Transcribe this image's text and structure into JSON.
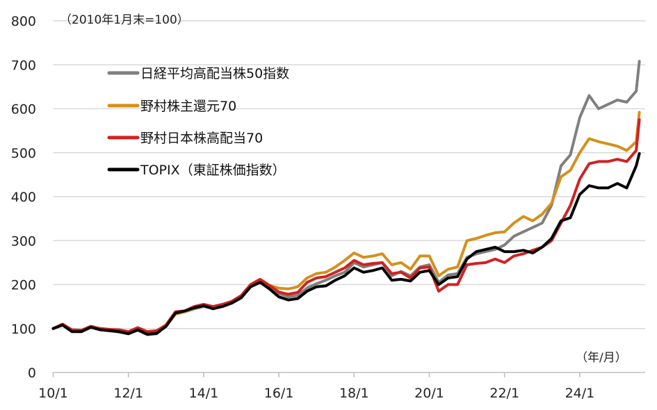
{
  "chart_data": {
    "type": "line",
    "title": "",
    "annotation_base": "（2010年1月末=100）",
    "xlabel": "（年/月）",
    "ylabel": "",
    "ylim": [
      0,
      800
    ],
    "yticks": [
      0,
      100,
      200,
      300,
      400,
      500,
      600,
      700,
      800
    ],
    "xticks": [
      {
        "date": "2010-01",
        "label": "10/1"
      },
      {
        "date": "2012-01",
        "label": "12/1"
      },
      {
        "date": "2014-01",
        "label": "14/1"
      },
      {
        "date": "2016-01",
        "label": "16/1"
      },
      {
        "date": "2018-01",
        "label": "18/1"
      },
      {
        "date": "2020-01",
        "label": "20/1"
      },
      {
        "date": "2022-01",
        "label": "22/1"
      },
      {
        "date": "2024-01",
        "label": "24/1"
      }
    ],
    "xlim": [
      "2010-01",
      "2025-10"
    ],
    "grid": "horizontal",
    "legend_placement": "top-left",
    "x": [
      "2010-01",
      "2010-04",
      "2010-07",
      "2010-10",
      "2011-01",
      "2011-04",
      "2011-07",
      "2011-10",
      "2012-01",
      "2012-04",
      "2012-07",
      "2012-10",
      "2013-01",
      "2013-04",
      "2013-07",
      "2013-10",
      "2014-01",
      "2014-04",
      "2014-07",
      "2014-10",
      "2015-01",
      "2015-04",
      "2015-07",
      "2015-10",
      "2016-01",
      "2016-04",
      "2016-07",
      "2016-10",
      "2017-01",
      "2017-04",
      "2017-07",
      "2017-10",
      "2018-01",
      "2018-04",
      "2018-07",
      "2018-10",
      "2019-01",
      "2019-04",
      "2019-07",
      "2019-10",
      "2020-01",
      "2020-04",
      "2020-07",
      "2020-10",
      "2021-01",
      "2021-04",
      "2021-07",
      "2021-10",
      "2022-01",
      "2022-04",
      "2022-07",
      "2022-10",
      "2023-01",
      "2023-04",
      "2023-07",
      "2023-10",
      "2024-01",
      "2024-04",
      "2024-07",
      "2024-10",
      "2025-01",
      "2025-04",
      "2025-07",
      "2025-08"
    ],
    "series": [
      {
        "name": "日経平均高配当株50指数",
        "color": "#7f7f7f",
        "values": [
          100,
          108,
          94,
          93,
          103,
          98,
          95,
          92,
          88,
          96,
          86,
          88,
          106,
          133,
          138,
          145,
          150,
          146,
          152,
          160,
          172,
          198,
          208,
          195,
          180,
          172,
          175,
          192,
          202,
          210,
          220,
          228,
          250,
          240,
          245,
          250,
          220,
          230,
          220,
          240,
          245,
          205,
          222,
          225,
          262,
          270,
          275,
          280,
          290,
          310,
          320,
          330,
          340,
          380,
          470,
          495,
          580,
          630,
          600,
          610,
          620,
          615,
          640,
          708
        ]
      },
      {
        "name": "野村株主還元70",
        "color": "#d4901c",
        "values": [
          100,
          108,
          96,
          95,
          105,
          100,
          98,
          95,
          92,
          100,
          90,
          92,
          105,
          133,
          138,
          146,
          152,
          148,
          153,
          160,
          172,
          200,
          212,
          198,
          192,
          190,
          195,
          215,
          225,
          228,
          240,
          255,
          272,
          262,
          265,
          270,
          245,
          250,
          235,
          265,
          265,
          220,
          235,
          240,
          300,
          305,
          312,
          318,
          320,
          340,
          355,
          345,
          360,
          385,
          445,
          460,
          500,
          532,
          525,
          520,
          515,
          505,
          525,
          592
        ]
      },
      {
        "name": "野村日本株高配当70",
        "color": "#d02222",
        "values": [
          100,
          110,
          97,
          96,
          105,
          100,
          98,
          97,
          93,
          102,
          93,
          95,
          108,
          138,
          140,
          150,
          155,
          150,
          155,
          162,
          175,
          200,
          212,
          198,
          183,
          178,
          182,
          205,
          215,
          218,
          228,
          238,
          255,
          245,
          248,
          250,
          225,
          228,
          215,
          238,
          240,
          185,
          200,
          200,
          245,
          248,
          250,
          258,
          250,
          265,
          270,
          278,
          285,
          300,
          340,
          380,
          440,
          475,
          480,
          480,
          485,
          480,
          505,
          575
        ]
      },
      {
        "name": "TOPIX（東証株価指数）",
        "color": "#000000",
        "values": [
          100,
          108,
          93,
          93,
          103,
          97,
          95,
          93,
          88,
          97,
          87,
          89,
          105,
          135,
          140,
          147,
          152,
          145,
          150,
          158,
          170,
          195,
          205,
          190,
          172,
          165,
          168,
          185,
          195,
          197,
          210,
          220,
          238,
          228,
          232,
          238,
          210,
          212,
          208,
          228,
          232,
          200,
          215,
          218,
          258,
          275,
          280,
          285,
          275,
          275,
          278,
          272,
          285,
          305,
          345,
          352,
          405,
          425,
          420,
          420,
          430,
          420,
          470,
          498
        ]
      }
    ]
  }
}
